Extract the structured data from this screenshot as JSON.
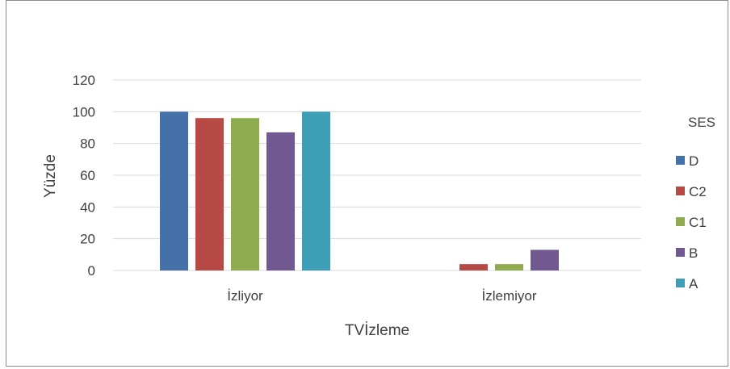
{
  "chart_data": {
    "type": "bar",
    "title": "",
    "xlabel": "TVİzleme",
    "ylabel": "Yüzde",
    "ylim": [
      0,
      120
    ],
    "yticks": [
      0,
      20,
      40,
      60,
      80,
      100,
      120
    ],
    "grid": true,
    "legend_position": "right",
    "legend_title": "SES",
    "categories": [
      "İzliyor",
      "İzlemiyor"
    ],
    "series": [
      {
        "name": "D",
        "color": "#4472A8",
        "values": [
          100,
          0
        ]
      },
      {
        "name": "C2",
        "color": "#B84A45",
        "values": [
          96,
          4
        ]
      },
      {
        "name": "C1",
        "color": "#8EAB4E",
        "values": [
          96,
          4
        ]
      },
      {
        "name": "B",
        "color": "#725891",
        "values": [
          87,
          13
        ]
      },
      {
        "name": "A",
        "color": "#3E9EB6",
        "values": [
          100,
          0
        ]
      }
    ]
  }
}
